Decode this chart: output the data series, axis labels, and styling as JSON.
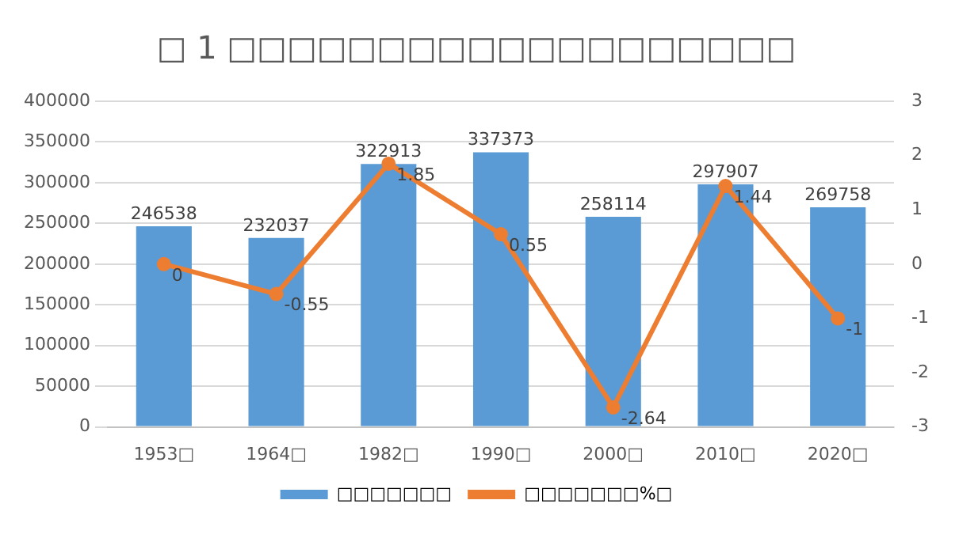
{
  "chart_data": {
    "type": "bar",
    "title": "□ 1 □□□□□□□□□□□□□□□□□□□",
    "categories": [
      "1953□",
      "1964□",
      "1982□",
      "1990□",
      "2000□",
      "2010□",
      "2020□"
    ],
    "series": [
      {
        "name": "□□□□□□□",
        "color": "#5b9bd5",
        "values": [
          246538,
          232037,
          322913,
          337373,
          258114,
          297907,
          269758
        ]
      },
      {
        "name": "□□□□□□□%□",
        "type": "line",
        "axis": "y2",
        "color": "#ed7d31",
        "values": [
          0,
          -0.55,
          1.85,
          0.55,
          -2.64,
          1.44,
          -1
        ]
      }
    ],
    "ylim": [
      0,
      400000
    ],
    "yticks": [
      0,
      50000,
      100000,
      150000,
      200000,
      250000,
      300000,
      350000,
      400000
    ],
    "y2lim": [
      -3,
      3
    ],
    "y2ticks": [
      -3,
      -2,
      -1,
      0,
      1,
      2,
      3
    ],
    "grid": "y",
    "legend": "bottom",
    "data_labels": true,
    "marker": "circle",
    "line_style": "solid"
  }
}
